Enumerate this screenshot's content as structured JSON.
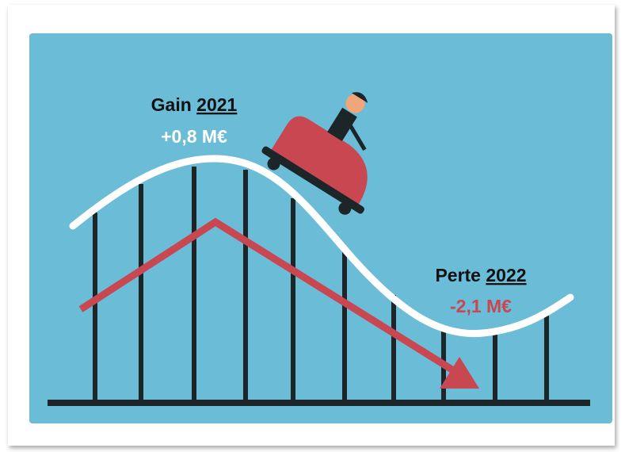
{
  "labels": {
    "gain": {
      "word": "Gain",
      "year": "2021",
      "amount": "+0,8 M€"
    },
    "loss": {
      "word": "Perte",
      "year": "2022",
      "amount": "-2,1 M€"
    }
  }
}
